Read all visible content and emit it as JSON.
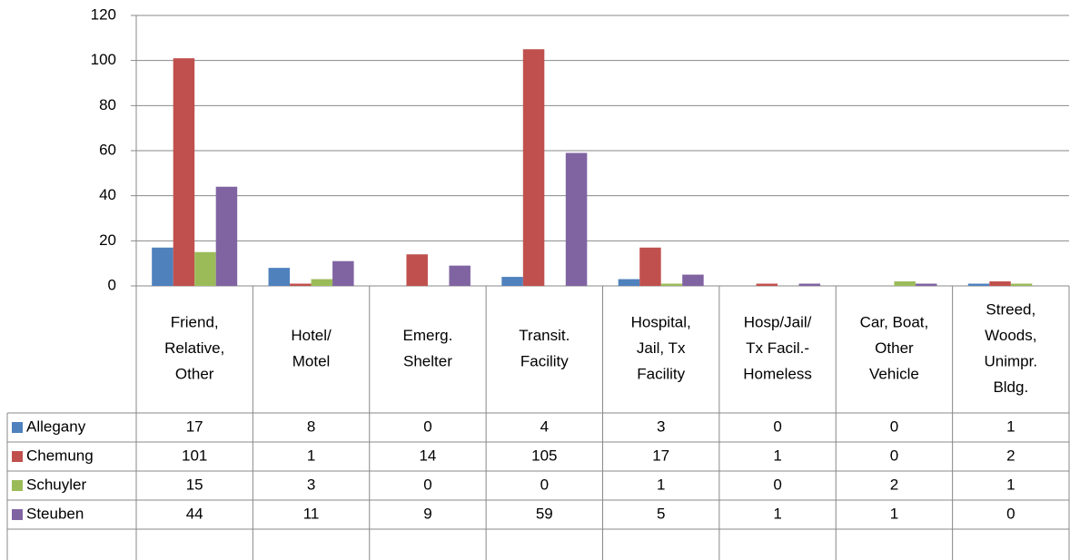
{
  "chart_data": {
    "type": "bar",
    "categories": [
      "Friend,\nRelative,\nOther",
      "Hotel/\nMotel",
      "Emerg.\nShelter",
      "Transit.\nFacility",
      "Hospital,\nJail, Tx\nFacility",
      "Hosp/Jail/\nTx Facil.-\nHomeless",
      "Car, Boat,\nOther\nVehicle",
      "Streed,\nWoods,\nUnimpr.\nBldg."
    ],
    "series": [
      {
        "name": "Allegany",
        "color": "#4f81bd",
        "values": [
          17,
          8,
          0,
          4,
          3,
          0,
          0,
          1
        ]
      },
      {
        "name": "Chemung",
        "color": "#c0504d",
        "values": [
          101,
          1,
          14,
          105,
          17,
          1,
          0,
          2
        ]
      },
      {
        "name": "Schuyler",
        "color": "#9bbb59",
        "values": [
          15,
          3,
          0,
          0,
          1,
          0,
          2,
          1
        ]
      },
      {
        "name": "Steuben",
        "color": "#8064a2",
        "values": [
          44,
          11,
          9,
          59,
          5,
          1,
          1,
          0
        ]
      }
    ],
    "ylim": [
      0,
      120
    ],
    "yticks": [
      0,
      20,
      40,
      60,
      80,
      100,
      120
    ],
    "grid": true,
    "data_table": true
  }
}
